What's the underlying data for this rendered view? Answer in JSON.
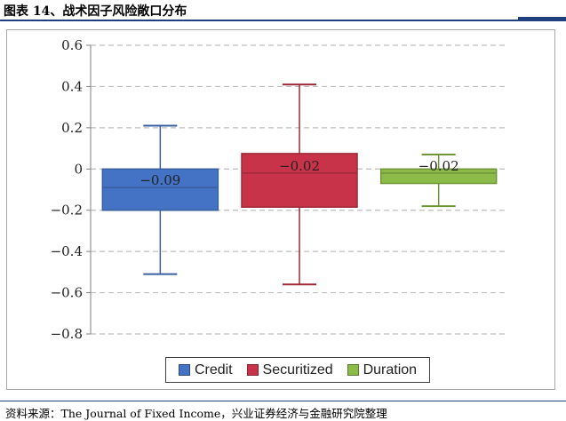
{
  "figure": {
    "title": "图表 14、战术因子风险敞口分布",
    "source": "资料来源：The Journal of Fixed Income，兴业证券经济与金融研究院整理"
  },
  "chart_data": {
    "type": "box",
    "title": "",
    "xlabel": "",
    "ylabel": "",
    "ylim": [
      -0.8,
      0.6
    ],
    "yticks": [
      0.6,
      0.4,
      0.2,
      0,
      -0.2,
      -0.4,
      -0.6,
      -0.8
    ],
    "ytick_labels": [
      "0.6",
      "0.4",
      "0.2",
      "0",
      "−0.2",
      "−0.4",
      "−0.6",
      "−0.8"
    ],
    "grid": true,
    "legend_position": "bottom",
    "series": [
      {
        "name": "Credit",
        "color": "#4472c4",
        "stroke": "#3a5f9f",
        "whisker_high": 0.21,
        "q3": 0.0,
        "median": -0.09,
        "q1": -0.2,
        "whisker_low": -0.51,
        "label": "−0.09"
      },
      {
        "name": "Securitized",
        "color": "#c8334a",
        "stroke": "#9e2a38",
        "whisker_high": 0.41,
        "q3": 0.075,
        "median": -0.02,
        "q1": -0.185,
        "whisker_low": -0.56,
        "label": "−0.02"
      },
      {
        "name": "Duration",
        "color": "#8dbb4a",
        "stroke": "#6e9637",
        "whisker_high": 0.07,
        "q3": 0.0,
        "median": -0.02,
        "q1": -0.07,
        "whisker_low": -0.18,
        "label": "−0.02"
      }
    ]
  }
}
